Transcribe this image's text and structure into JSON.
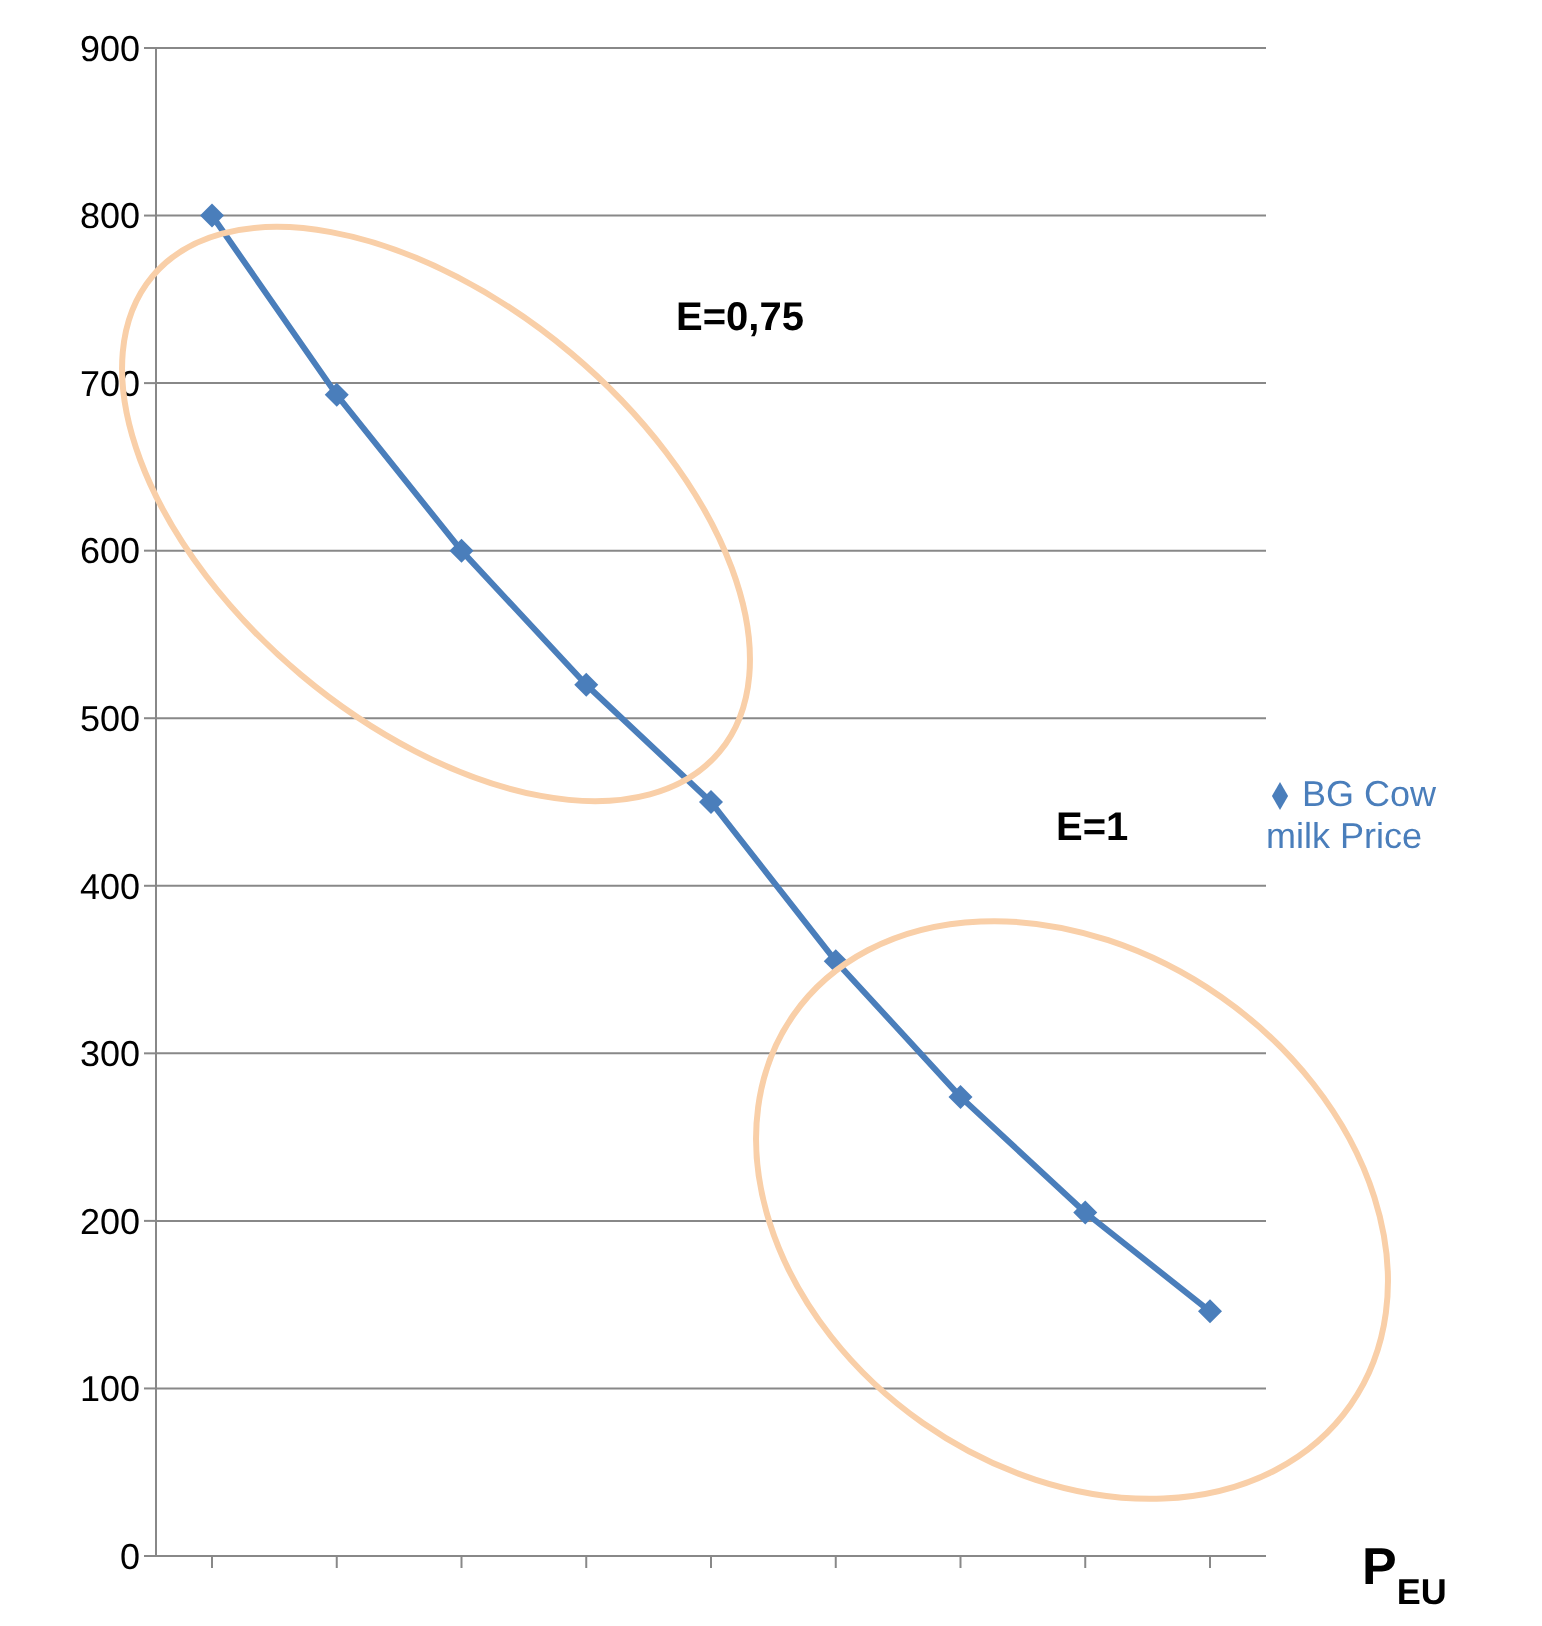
{
  "chart_data": {
    "type": "line",
    "xlabel": "P$_{EU}$",
    "categories": [
      null,
      null,
      null,
      null,
      null,
      null,
      null,
      null,
      null
    ],
    "series": [
      {
        "name": "BG Cow milk Price",
        "color": "#4a7ebb",
        "values": [
          800,
          693,
          600,
          520,
          450,
          355,
          274,
          205,
          146
        ]
      }
    ],
    "ylim": [
      0,
      900
    ],
    "yticks": [
      0,
      100,
      200,
      300,
      400,
      500,
      600,
      700,
      800,
      900
    ],
    "grid": "y",
    "legend": "right",
    "marker": "diamond",
    "line_style": "solid",
    "annotations": [
      "E=0,75",
      "E=1"
    ]
  }
}
